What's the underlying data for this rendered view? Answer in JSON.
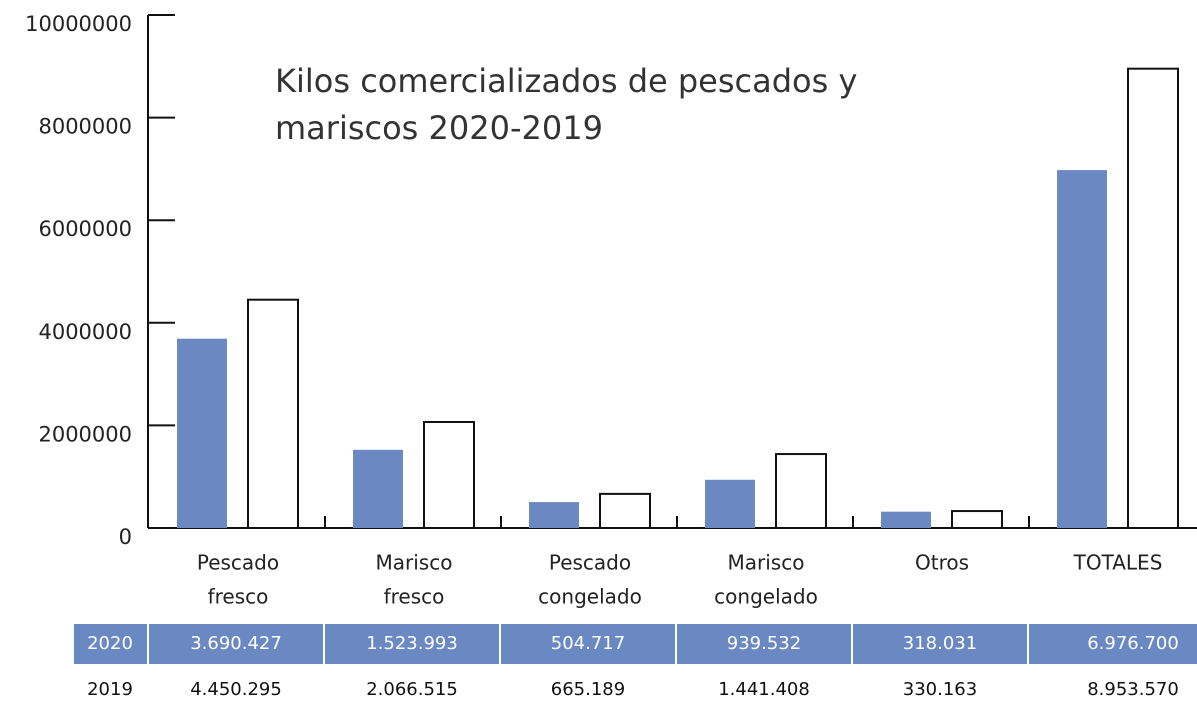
{
  "chart_data": {
    "type": "bar",
    "title": [
      "Kilos comercializados de pescados y",
      "mariscos 2020-2019"
    ],
    "categories": [
      [
        "Pescado",
        "fresco"
      ],
      [
        "Marisco",
        "fresco"
      ],
      [
        "Pescado",
        "congelado"
      ],
      [
        "Marisco",
        "congelado"
      ],
      [
        "Otros"
      ],
      [
        "TOTALES"
      ]
    ],
    "series": [
      {
        "name": "2020",
        "color": "#6a88c2",
        "values": [
          3690427,
          1523993,
          504717,
          939532,
          318031,
          6976700
        ],
        "value_labels": [
          "3.690.427",
          "1.523.993",
          "504.717",
          "939.532",
          "318.031",
          "6.976.700"
        ]
      },
      {
        "name": "2019",
        "color": "#ffffff",
        "values": [
          4450295,
          2066515,
          665189,
          1441408,
          330163,
          8953570
        ],
        "value_labels": [
          "4.450.295",
          "2.066.515",
          "665.189",
          "1.441.408",
          "330.163",
          "8.953.570"
        ]
      }
    ],
    "ylim": [
      0,
      10000000
    ],
    "yticks": [
      0,
      2000000,
      4000000,
      6000000,
      8000000,
      10000000
    ]
  }
}
